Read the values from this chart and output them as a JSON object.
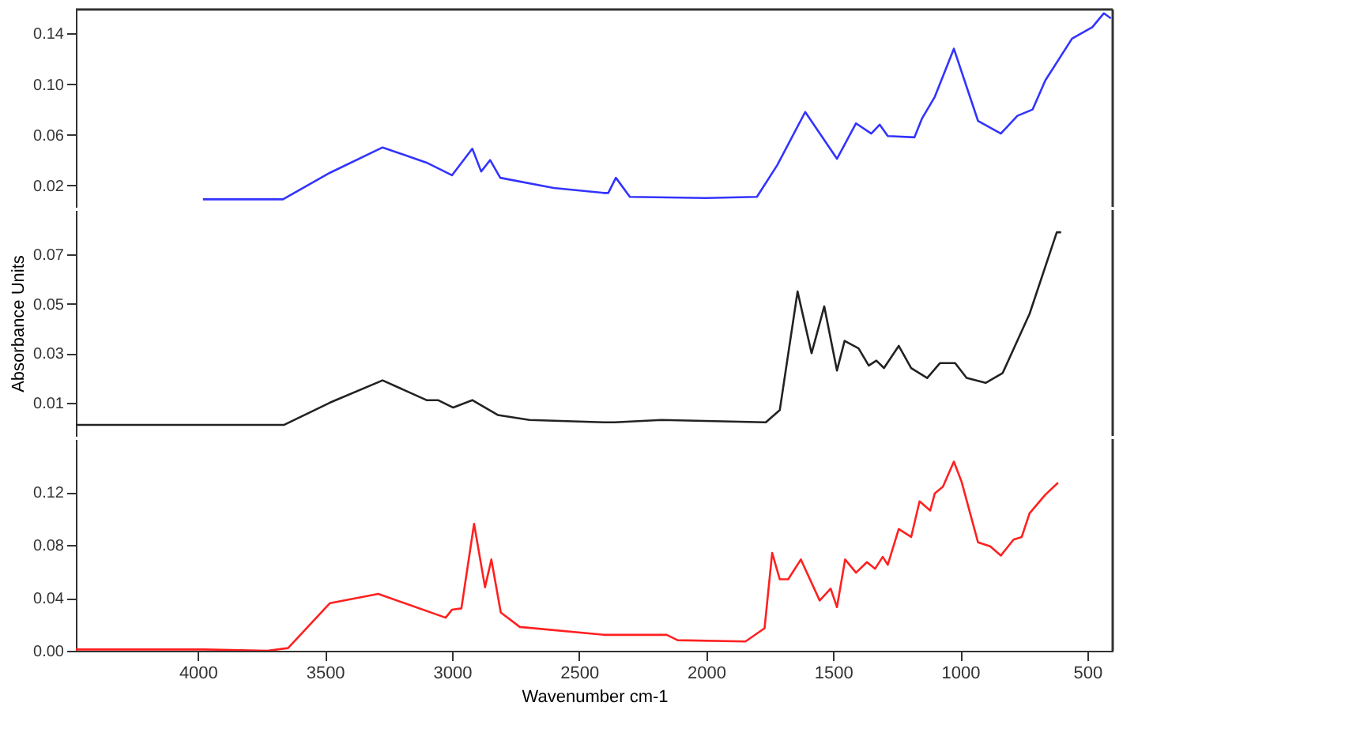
{
  "chart_data": [
    {
      "type": "line",
      "xlim": [
        4480,
        400
      ],
      "xticks": [
        4000,
        3500,
        3000,
        2500,
        2000,
        1500,
        1000,
        500
      ],
      "ylim": [
        0.003,
        0.159
      ],
      "yticks": [
        0.02,
        0.06,
        {
          "value": 0.1,
          "label": "0.10"
        },
        0.14
      ],
      "tick_labels": "y",
      "series": [
        {
          "color": "#3333ff",
          "x": [
            3980,
            3665,
            3480,
            3273,
            3100,
            3000,
            2920,
            2885,
            2850,
            2810,
            2600,
            2400,
            2385,
            2355,
            2300,
            2000,
            1800,
            1720,
            1610,
            1485,
            1410,
            1350,
            1317,
            1285,
            1180,
            1150,
            1100,
            1025,
            930,
            840,
            775,
            715,
            665,
            560,
            480,
            435,
            407
          ],
          "values": [
            0.009,
            0.009,
            0.03,
            0.05,
            0.038,
            0.028,
            0.049,
            0.031,
            0.04,
            0.026,
            0.018,
            0.014,
            0.014,
            0.026,
            0.011,
            0.01,
            0.011,
            0.036,
            0.078,
            0.041,
            0.069,
            0.061,
            0.068,
            0.059,
            0.058,
            0.073,
            0.09,
            0.128,
            0.071,
            0.061,
            0.075,
            0.08,
            0.103,
            0.136,
            0.145,
            0.156,
            0.152
          ]
        }
      ]
    },
    {
      "type": "line",
      "xlim": [
        4480,
        400
      ],
      "xticks": [
        4000,
        3500,
        3000,
        2500,
        2000,
        1500,
        1000,
        500
      ],
      "ylim": [
        -0.0035,
        0.088
      ],
      "yticks": [
        0.01,
        0.03,
        0.05,
        0.07
      ],
      "tick_labels": "y",
      "ylabel": "Absorbance Units",
      "series": [
        {
          "color": "#222222",
          "x": [
            4480,
            3660,
            3480,
            3273,
            3100,
            3055,
            2995,
            2920,
            2820,
            2695,
            2400,
            2360,
            2175,
            1765,
            1710,
            1640,
            1585,
            1535,
            1485,
            1455,
            1400,
            1360,
            1330,
            1300,
            1242,
            1193,
            1130,
            1080,
            1020,
            975,
            900,
            833,
            727,
            620,
            603
          ],
          "values": [
            0.001,
            0.001,
            0.01,
            0.019,
            0.011,
            0.011,
            0.008,
            0.011,
            0.005,
            0.003,
            0.002,
            0.002,
            0.003,
            0.002,
            0.007,
            0.055,
            0.03,
            0.049,
            0.023,
            0.035,
            0.032,
            0.025,
            0.027,
            0.024,
            0.033,
            0.024,
            0.02,
            0.026,
            0.026,
            0.02,
            0.018,
            0.022,
            0.046,
            0.079,
            0.079
          ]
        }
      ]
    },
    {
      "type": "line",
      "xlim": [
        4480,
        400
      ],
      "xticks": [
        4000,
        3500,
        3000,
        2500,
        2000,
        1500,
        1000,
        500
      ],
      "ylim": [
        0,
        0.16
      ],
      "yticks": [
        {
          "value": 0,
          "label": "0.00"
        },
        0.04,
        0.08,
        0.12
      ],
      "xlabel": "Wavenumber cm-1",
      "series": [
        {
          "color": "#ff2020",
          "x": [
            4480,
            3975,
            3727,
            3645,
            3480,
            3290,
            3025,
            3000,
            2963,
            2913,
            2870,
            2845,
            2808,
            2733,
            2400,
            2155,
            2112,
            1845,
            1770,
            1740,
            1710,
            1677,
            1627,
            1553,
            1510,
            1485,
            1453,
            1410,
            1367,
            1335,
            1305,
            1285,
            1242,
            1193,
            1160,
            1118,
            1100,
            1068,
            1025,
            995,
            930,
            882,
            840,
            790,
            758,
            727,
            665,
            615
          ],
          "values": [
            0.001,
            0.001,
            0.0,
            0.002,
            0.036,
            0.043,
            0.025,
            0.031,
            0.032,
            0.096,
            0.048,
            0.069,
            0.029,
            0.018,
            0.012,
            0.012,
            0.008,
            0.007,
            0.017,
            0.074,
            0.054,
            0.054,
            0.069,
            0.038,
            0.047,
            0.033,
            0.069,
            0.059,
            0.067,
            0.062,
            0.071,
            0.065,
            0.092,
            0.086,
            0.113,
            0.106,
            0.119,
            0.124,
            0.143,
            0.128,
            0.082,
            0.079,
            0.072,
            0.084,
            0.086,
            0.104,
            0.118,
            0.127
          ]
        }
      ]
    }
  ]
}
